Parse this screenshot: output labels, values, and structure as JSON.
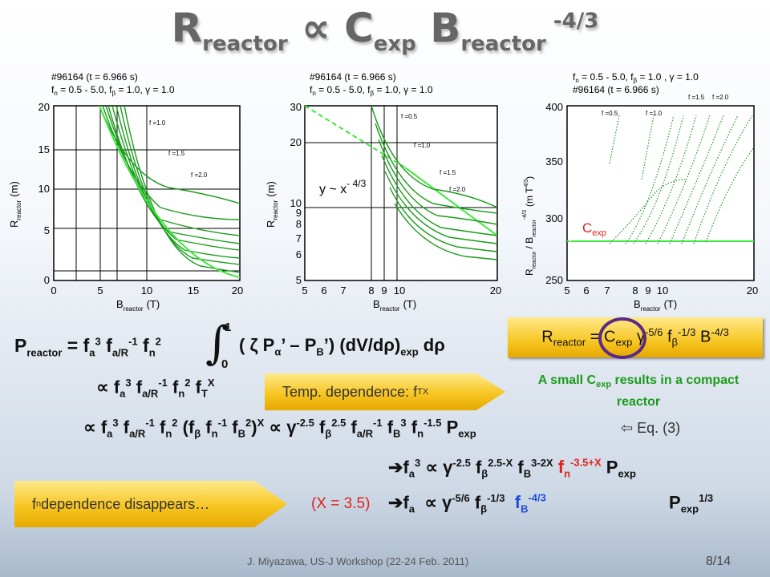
{
  "title": {
    "main": "R",
    "sub1": "reactor",
    "prop": " ∝ C",
    "sub2": "exp",
    "b": " B",
    "sub3": "reactor",
    "sup": " -4/3"
  },
  "chart1": {
    "annotation_line1": "#96164 (t = 6.966 s)",
    "annotation_line2": "f",
    "annotation_line2_rest": " = 0.5 - 5.0, f",
    "annotation_line2_rest2": " = 1.0, γ = 1.0",
    "ylabel": "R",
    "ylabel_sub": "reactor",
    "ylabel_unit": "(m)",
    "xlabel": "B",
    "xlabel_sub": "reactor",
    "xlabel_unit": "(T)",
    "xticks": [
      "0",
      "5",
      "10",
      "15",
      "20"
    ],
    "yticks": [
      "0",
      "5",
      "10",
      "15",
      "20"
    ],
    "curve_labels": [
      "f =1.0",
      "f =1.5",
      "f =2.0"
    ]
  },
  "chart2": {
    "annotation_line1": "#96164 (t = 6.966 s)",
    "ylabel": "R",
    "ylabel_sub": "reactor",
    "ylabel_unit": "(m)",
    "xlabel": "B",
    "xlabel_sub": "reactor",
    "xlabel_unit": "(T)",
    "xticks": [
      "5",
      "6",
      "7",
      "8",
      "9",
      "10",
      "20"
    ],
    "yticks": [
      "5",
      "6",
      "7",
      "8",
      "9",
      "10",
      "20",
      "30"
    ],
    "curve_labels": [
      "f =0.5",
      "f =1.0",
      "f =1.5",
      "f =2.0"
    ],
    "fit_label": "y ~ x",
    "fit_sup": "- 4/3"
  },
  "chart3": {
    "annotation_line1": "f",
    "annotation_line1_rest": " = 0.5 - 5.0, f",
    "annotation_line1_rest2": " = 1.0 , γ = 1.0",
    "annotation_line2": "#96164 (t = 6.966 s)",
    "ylabel": "R",
    "ylabel_sub": "reactor",
    "ylabel_mid": "/ B",
    "ylabel_sub2": "reactor",
    "ylabel_sup": "-4/3",
    "ylabel_unit": "(m T",
    "ylabel_unit_sup": "4/3",
    "ylabel_unit_end": ")",
    "xlabel": "B",
    "xlabel_sub": "reactor",
    "xlabel_unit": "(T)",
    "xticks": [
      "5",
      "6",
      "7",
      "8",
      "9",
      "10",
      "20"
    ],
    "yticks": [
      "250",
      "300",
      "350",
      "400"
    ],
    "curve_labels": [
      "f =0.5",
      "f =1.0",
      "f =1.5",
      "f =2.0"
    ],
    "cexp_label": "C",
    "cexp_sub": "exp"
  },
  "equations": {
    "preactor": "P",
    "reactor_sub": "reactor",
    "integral_top": "1",
    "integral_bottom": "0",
    "eq1_rest": "( ζ P",
    "eq1_end": "’ – P",
    "eq1_end2": "’) (dV/dρ)",
    "eq1_exp": "exp",
    "eq1_tail": " dρ",
    "prop_line2": "∝ f",
    "prop_line3": "∝ f",
    "eq3_ref": "⇦ Eq. (3)",
    "line4_arrow": "➔",
    "line5_x": "(X = 3.5)",
    "line5_arrow": "➔"
  },
  "boxes": {
    "temp": "Temp. dependence: f",
    "temp_sub": "T",
    "temp_sup": "X",
    "fn": "f",
    "fn_sub": "n",
    "fn_rest": " dependence disappears…",
    "rbox_text": "R",
    "rbox_sub": "reactor",
    "rbox_eq": " = C",
    "rbox_sub2": "exp",
    "rbox_gamma": " γ",
    "rbox_sup1": "-5/6",
    "rbox_f": " f",
    "rbox_sup2": "-1/3",
    "rbox_b": " B",
    "rbox_sup3": "-4/3",
    "small_text": "A small C",
    "small_sub": "exp",
    "small_rest": " results in a compact reactor"
  },
  "footer": {
    "credit": "J. Miyazawa, US-J Workshop  (22-24 Feb. 2011)",
    "page": "8/14"
  },
  "colors": {
    "green": "#1a9b1a",
    "light_green": "#3ee83e",
    "red": "#e0231c",
    "blue": "#1f4ed8",
    "gold": "#f7c623",
    "title_gray": "#666666"
  }
}
